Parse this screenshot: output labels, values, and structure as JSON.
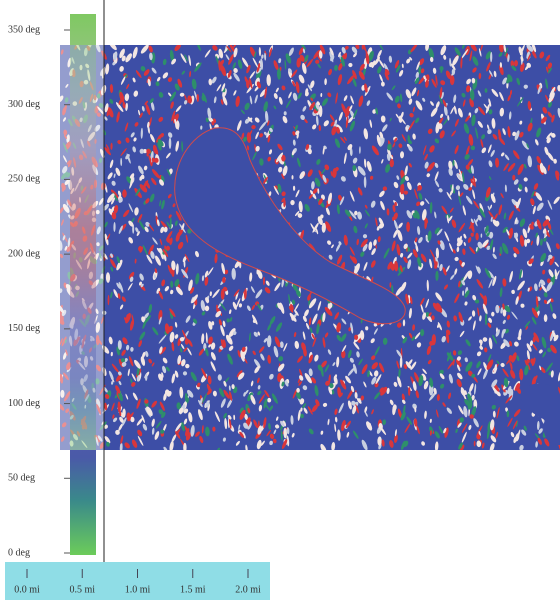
{
  "colorbar": {
    "ticks": [
      {
        "value": 0,
        "label": "0 deg"
      },
      {
        "value": 50,
        "label": "50 deg"
      },
      {
        "value": 100,
        "label": "100 deg"
      },
      {
        "value": 150,
        "label": "150 deg"
      },
      {
        "value": 200,
        "label": "200 deg"
      },
      {
        "value": 250,
        "label": "250 deg"
      },
      {
        "value": 300,
        "label": "300 deg"
      },
      {
        "value": 350,
        "label": "350 deg"
      }
    ]
  },
  "scale_bar": {
    "ticks": [
      {
        "value": 0,
        "label": "0.0 mi"
      },
      {
        "value": 0.5,
        "label": "0.5 mi"
      },
      {
        "value": 1,
        "label": "1.0 mi"
      },
      {
        "value": 1.5,
        "label": "1.5 mi"
      },
      {
        "value": 2,
        "label": "2.0 mi"
      }
    ]
  }
}
